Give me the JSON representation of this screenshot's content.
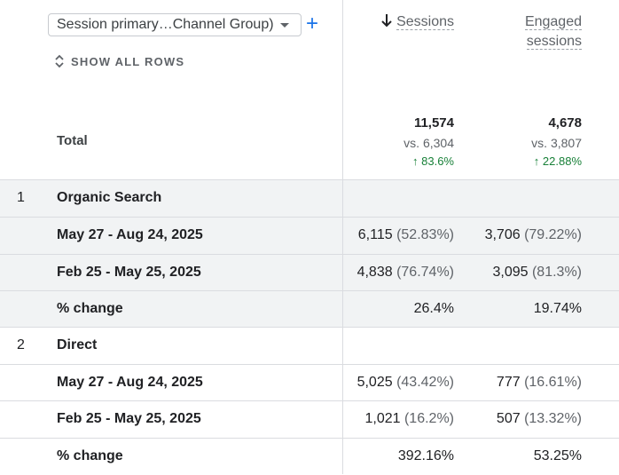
{
  "toolbar": {
    "dimension_select": "Session primary…Channel Group)",
    "add_dimension": "+",
    "show_all_rows": "SHOW ALL ROWS"
  },
  "columns": [
    {
      "label_line1": "Sessions",
      "label_line2": "",
      "sorted": "descending"
    },
    {
      "label_line1": "Engaged",
      "label_line2": "sessions"
    }
  ],
  "totals": {
    "label": "Total",
    "sessions": {
      "value": "11,574",
      "compare": "vs. 6,304",
      "change": "83.6%"
    },
    "engaged": {
      "value": "4,678",
      "compare": "vs. 3,807",
      "change": "22.88%"
    }
  },
  "groups": [
    {
      "index": "1",
      "name": "Organic Search",
      "rows": [
        {
          "label": "May 27 - Aug 24, 2025",
          "sessions": "6,115",
          "sessions_pct": "(52.83%)",
          "engaged": "3,706",
          "engaged_pct": "(79.22%)"
        },
        {
          "label": "Feb 25 - May 25, 2025",
          "sessions": "4,838",
          "sessions_pct": "(76.74%)",
          "engaged": "3,095",
          "engaged_pct": "(81.3%)"
        },
        {
          "label": "% change",
          "sessions": "26.4%",
          "sessions_pct": "",
          "engaged": "19.74%",
          "engaged_pct": ""
        }
      ]
    },
    {
      "index": "2",
      "name": "Direct",
      "rows": [
        {
          "label": "May 27 - Aug 24, 2025",
          "sessions": "5,025",
          "sessions_pct": "(43.42%)",
          "engaged": "777",
          "engaged_pct": "(16.61%)"
        },
        {
          "label": "Feb 25 - May 25, 2025",
          "sessions": "1,021",
          "sessions_pct": "(16.2%)",
          "engaged": "507",
          "engaged_pct": "(13.32%)"
        },
        {
          "label": "% change",
          "sessions": "392.16%",
          "sessions_pct": "",
          "engaged": "53.25%",
          "engaged_pct": ""
        }
      ]
    }
  ],
  "colors": {
    "accent": "#1a73e8",
    "positive": "#188038",
    "row_shade": "#f1f3f4",
    "divider": "#dadce0"
  }
}
